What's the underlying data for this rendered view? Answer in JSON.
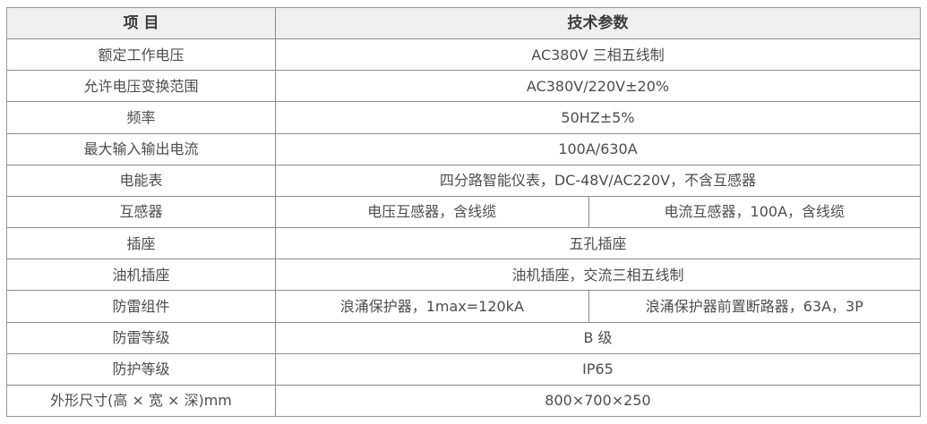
{
  "colors": {
    "header_bg": "#efefef",
    "border": "#8c8c8c",
    "outer_border": "#999999",
    "header_text": "#3b3b3b",
    "body_text": "#4d4d4d",
    "page_bg": "#ffffff"
  },
  "table": {
    "header": {
      "item": "项  目",
      "params": "技术参数"
    },
    "rows": [
      {
        "item": "额定工作电压",
        "value": "AC380V 三相五线制"
      },
      {
        "item": "允许电压变换范围",
        "value": "AC380V/220V±20%"
      },
      {
        "item": "频率",
        "value": "50HZ±5%"
      },
      {
        "item": "最大输入输出电流",
        "value": "100A/630A"
      },
      {
        "item": "电能表",
        "value": "四分路智能仪表，DC-48V/AC220V，不含互感器"
      },
      {
        "item": "互感器",
        "value_left": "电压互感器，含线缆",
        "value_right": "电流互感器，100A，含线缆"
      },
      {
        "item": "插座",
        "value": "五孔插座"
      },
      {
        "item": "油机插座",
        "value": "油机插座，交流三相五线制"
      },
      {
        "item": "防雷组件",
        "value_left": "浪涌保护器，1max=120kA",
        "value_right": "浪涌保护器前置断路器，63A，3P"
      },
      {
        "item": "防雷等级",
        "value": "B 级"
      },
      {
        "item": "防护等级",
        "value": "IP65"
      },
      {
        "item": "外形尺寸(高 × 宽 × 深)mm",
        "value": "800×700×250"
      }
    ]
  }
}
